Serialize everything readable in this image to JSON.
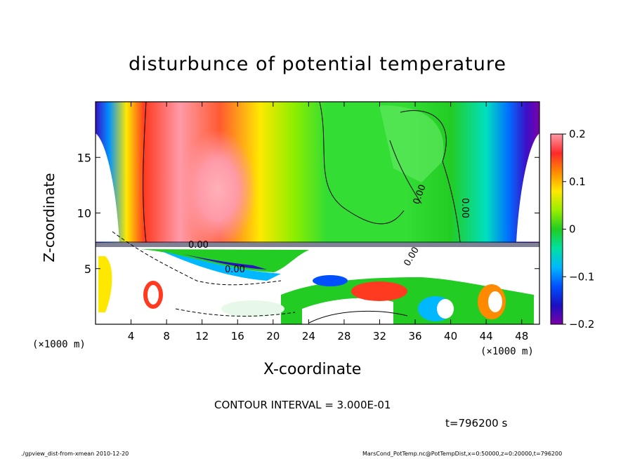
{
  "chart_data": {
    "type": "heatmap",
    "title": "disturbunce of potential temperature",
    "xlabel": "X-coordinate",
    "ylabel": "Z-coordinate",
    "x_unit": "(×1000 m)",
    "x_ticks": [
      4,
      8,
      12,
      16,
      20,
      24,
      28,
      32,
      36,
      40,
      44,
      48
    ],
    "y_ticks": [
      5,
      10,
      15
    ],
    "xlim": [
      0,
      50
    ],
    "ylim": [
      0,
      20
    ],
    "colorbar": {
      "ticks": [
        "0.2",
        "0.1",
        "0",
        "−0.1",
        "−0.2"
      ],
      "values": [
        0.2,
        0.1,
        0,
        -0.1,
        -0.2
      ],
      "range": [
        -0.2,
        0.2
      ]
    },
    "contour_labels": [
      "0.00",
      "0.00",
      "0.00",
      "0.00",
      "0.00"
    ],
    "contour_interval": "CONTOUR INTERVAL = 3.000E-01",
    "time": "t=796200 s",
    "colors": {
      "max": "#ff9aa8",
      "zero": "#22cc22",
      "min": "#7d00a8"
    }
  },
  "footer": {
    "left": "./gpview_dist-from-xmean   2010-12-20",
    "right": "MarsCond_PotTemp.nc@PotTempDist,x=0:50000,z=0:20000,t=796200"
  }
}
